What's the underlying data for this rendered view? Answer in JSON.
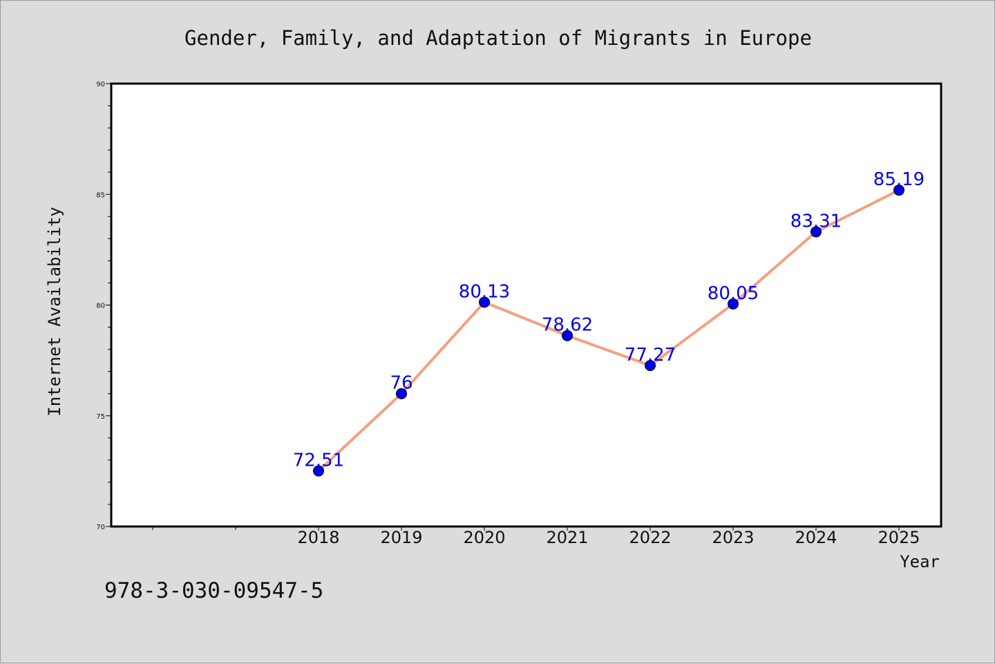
{
  "chart_data": {
    "type": "line",
    "title": "Gender, Family, and Adaptation of Migrants in Europe",
    "xlabel": "Year",
    "ylabel": "Internet Availability",
    "x": [
      "2018",
      "2019",
      "2020",
      "2021",
      "2022",
      "2023",
      "2024",
      "2025"
    ],
    "values": [
      72.51,
      76,
      80.13,
      78.62,
      77.27,
      80.05,
      83.31,
      85.19
    ],
    "data_labels": [
      "72.51",
      "76",
      "80.13",
      "78.62",
      "77.27",
      "80.05",
      "83.31",
      "85.19"
    ],
    "ylim": [
      70,
      90
    ],
    "yticks": [
      70,
      75,
      80,
      85,
      90
    ],
    "ytick_labels": [
      "70",
      "75",
      "80",
      "85",
      "90"
    ],
    "grid": false,
    "legend": "none",
    "line_color": "#f4a07e",
    "marker_color": "#0000ee",
    "label_color": "#0000ee",
    "plot_background": "#ffffff",
    "figure_background": "#dcdcdc"
  },
  "footer": {
    "isbn": "978-3-030-09547-5"
  }
}
